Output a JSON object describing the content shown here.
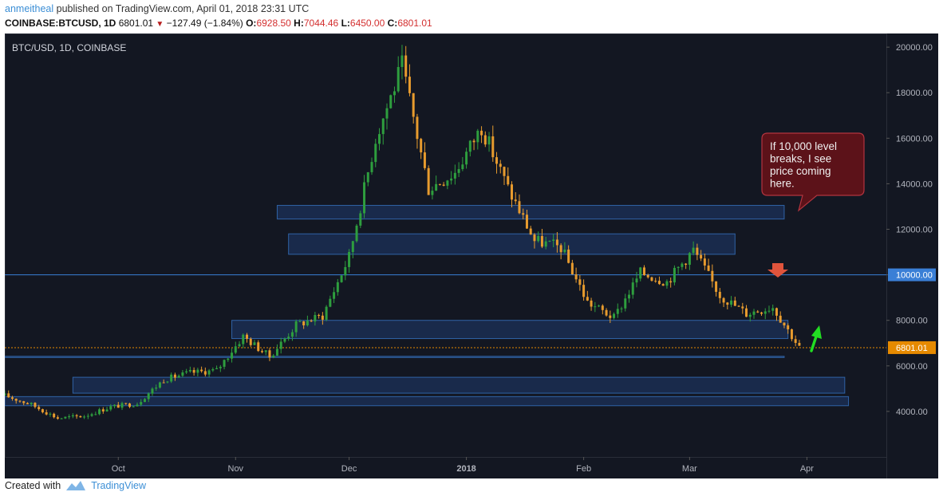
{
  "header": {
    "author": "anmeitheal",
    "published_text": "published on TradingView.com, April 01, 2018 23:31 UTC",
    "symbol": "COINBASE:BTCUSD, 1D",
    "last": "6801.01",
    "change": "−127.49 (−1.84%)",
    "open_label": "O:",
    "open": "6928.50",
    "high_label": "H:",
    "high": "7044.46",
    "low_label": "L:",
    "low": "6450.00",
    "close_label": "C:",
    "close": "6801.01"
  },
  "footer": {
    "created_with": "Created with",
    "brand": "TradingView",
    "icon": "tradingview-logo-icon"
  },
  "colors": {
    "background": "#131722",
    "up": "#2e9e3e",
    "down": "#e79b2e",
    "zone": "#1f3a6e",
    "line": "#3a7fd6",
    "price_tag": "#e68a00",
    "callout": "#5c1219",
    "arrow_down": "#e0543c",
    "arrow_up": "#22dd22"
  },
  "chart_data": {
    "type": "candlestick",
    "title": "BTC/USD, 1D, COINBASE",
    "x_tick_labels": [
      "Oct",
      "Nov",
      "Dec",
      "2018",
      "Feb",
      "Mar",
      "Apr"
    ],
    "x_tick_dates": [
      "2017-10-01",
      "2017-11-01",
      "2017-12-01",
      "2018-01-01",
      "2018-02-01",
      "2018-03-01",
      "2018-04-01"
    ],
    "x_range": [
      "2017-09-01",
      "2018-04-22"
    ],
    "y_ticks": [
      4000,
      6000,
      8000,
      10000,
      12000,
      14000,
      16000,
      18000,
      20000
    ],
    "y_tick_labels": [
      "4000.00",
      "6000.00",
      "8000.00",
      "10000.00",
      "12000.00",
      "14000.00",
      "16000.00",
      "18000.00",
      "20000.00"
    ],
    "ylim": [
      2000,
      20600
    ],
    "price_level_label": "10000.00",
    "current_price_label": "6801.01",
    "current_price": 6801.01,
    "horizontal_lines": [
      {
        "price": 10000,
        "style": "solid"
      },
      {
        "price": 6801.01,
        "style": "dotted"
      }
    ],
    "zones": [
      {
        "from": "2017-11-12",
        "to": "2018-03-26",
        "low": 12450,
        "high": 13050
      },
      {
        "from": "2017-11-15",
        "to": "2018-03-13",
        "low": 10900,
        "high": 11800
      },
      {
        "from": "2017-10-31",
        "to": "2018-03-27",
        "low": 7200,
        "high": 8000
      },
      {
        "from": "2017-09-01",
        "to": "2018-03-26",
        "low": 6380,
        "high": 6420
      },
      {
        "from": "2017-09-19",
        "to": "2018-04-11",
        "low": 4800,
        "high": 5500
      },
      {
        "from": "2017-09-01",
        "to": "2018-04-12",
        "low": 4250,
        "high": 4650
      }
    ],
    "annotation": {
      "text_lines": [
        "If 10,000 level",
        "breaks, I see",
        "price coming",
        "here."
      ]
    },
    "arrows": [
      {
        "type": "down",
        "date": "2018-03-26",
        "price": 10250
      },
      {
        "type": "up",
        "date": "2018-04-02",
        "price": 7300
      }
    ],
    "candles_weekly_close": [
      {
        "date": "2017-09-01",
        "close": 4700
      },
      {
        "date": "2017-09-08",
        "close": 4300
      },
      {
        "date": "2017-09-15",
        "close": 3700
      },
      {
        "date": "2017-09-22",
        "close": 3800
      },
      {
        "date": "2017-09-29",
        "close": 4200
      },
      {
        "date": "2017-10-06",
        "close": 4350
      },
      {
        "date": "2017-10-13",
        "close": 5400
      },
      {
        "date": "2017-10-20",
        "close": 5700
      },
      {
        "date": "2017-10-27",
        "close": 5800
      },
      {
        "date": "2017-11-03",
        "close": 7300
      },
      {
        "date": "2017-11-10",
        "close": 6400
      },
      {
        "date": "2017-11-17",
        "close": 7800
      },
      {
        "date": "2017-11-24",
        "close": 8200
      },
      {
        "date": "2017-12-01",
        "close": 10800
      },
      {
        "date": "2017-12-08",
        "close": 16000
      },
      {
        "date": "2017-12-15",
        "close": 19200
      },
      {
        "date": "2017-12-22",
        "close": 13800
      },
      {
        "date": "2017-12-29",
        "close": 14500
      },
      {
        "date": "2018-01-05",
        "close": 16500
      },
      {
        "date": "2018-01-12",
        "close": 13800
      },
      {
        "date": "2018-01-19",
        "close": 11500
      },
      {
        "date": "2018-01-26",
        "close": 11200
      },
      {
        "date": "2018-02-02",
        "close": 8800
      },
      {
        "date": "2018-02-09",
        "close": 8100
      },
      {
        "date": "2018-02-16",
        "close": 10100
      },
      {
        "date": "2018-02-23",
        "close": 9700
      },
      {
        "date": "2018-03-02",
        "close": 11100
      },
      {
        "date": "2018-03-09",
        "close": 9100
      },
      {
        "date": "2018-03-16",
        "close": 8300
      },
      {
        "date": "2018-03-23",
        "close": 8600
      },
      {
        "date": "2018-03-30",
        "close": 6801.01
      }
    ]
  }
}
